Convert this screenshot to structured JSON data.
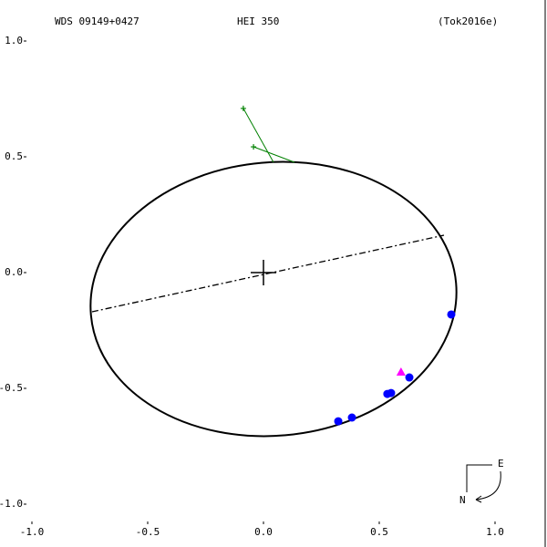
{
  "chart_data": {
    "type": "scatter",
    "header": [
      "WDS 09149+0427",
      "HEI 350",
      "(Tok2016e)"
    ],
    "compass": [
      "E",
      "N"
    ],
    "xlim": [
      -1.0,
      1.0
    ],
    "ylim": [
      -1.0,
      1.0
    ],
    "xticks": [
      {
        "value": -1.0,
        "label": "-1.0"
      },
      {
        "value": -0.5,
        "label": "-0.5"
      },
      {
        "value": 0,
        "label": "0.0"
      },
      {
        "value": 0.5,
        "label": "0.5"
      },
      {
        "value": 1.0,
        "label": "1.0"
      }
    ],
    "yticks": [
      {
        "value": 1.0,
        "label": "1.0"
      },
      {
        "value": 0.5,
        "label": "0.5"
      },
      {
        "value": 0,
        "label": "0.0"
      },
      {
        "value": -0.5,
        "label": "-0.5"
      },
      {
        "value": -1.0,
        "label": "-1.0"
      }
    ],
    "series": [
      {
        "color": "#0000ff",
        "marker": "circle",
        "x": [
          0.811,
          0.63,
          0.551,
          0.535,
          0.382,
          0.323
        ],
        "values": [
          -0.181,
          -0.453,
          -0.52,
          -0.524,
          -0.626,
          -0.642
        ]
      },
      {
        "color": "#ff00ff",
        "marker": "triangle",
        "x": [
          0.594
        ],
        "values": [
          -0.429
        ]
      },
      {
        "color": "#008000",
        "marker": "plus",
        "x": [
          -0.087,
          -0.043
        ],
        "values": [
          0.709,
          0.543
        ]
      }
    ]
  }
}
